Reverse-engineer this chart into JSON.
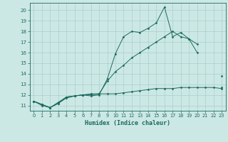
{
  "bg_color": "#cce8e5",
  "line_color": "#1a6b5e",
  "grid_color": "#aacfcc",
  "xlabel": "Humidex (Indice chaleur)",
  "xlim": [
    -0.5,
    23.5
  ],
  "ylim": [
    10.5,
    20.7
  ],
  "yticks": [
    11,
    12,
    13,
    14,
    15,
    16,
    17,
    18,
    19,
    20
  ],
  "xticks": [
    0,
    1,
    2,
    3,
    4,
    5,
    6,
    7,
    8,
    9,
    10,
    11,
    12,
    13,
    14,
    15,
    16,
    17,
    18,
    19,
    20,
    21,
    22,
    23
  ],
  "lines": [
    {
      "x": [
        0,
        1,
        2,
        3,
        4,
        5,
        6,
        7,
        8,
        9,
        10,
        11,
        12,
        13,
        14,
        15,
        16,
        17,
        18,
        19,
        20,
        21,
        22,
        23
      ],
      "y": [
        11.4,
        11.1,
        10.8,
        11.2,
        11.8,
        11.9,
        12.0,
        11.9,
        12.0,
        13.5,
        15.9,
        17.5,
        18.0,
        17.9,
        18.3,
        18.8,
        20.3,
        17.5,
        17.9,
        17.3,
        16.0,
        null,
        null,
        13.8
      ]
    },
    {
      "x": [
        0,
        1,
        2,
        3,
        4,
        5,
        6,
        7,
        8,
        9,
        10,
        11,
        12,
        13,
        14,
        15,
        16,
        17,
        18,
        19,
        20,
        21,
        22,
        23
      ],
      "y": [
        11.4,
        11.1,
        10.8,
        11.3,
        11.8,
        11.9,
        12.0,
        12.0,
        12.1,
        13.3,
        14.2,
        14.8,
        15.5,
        16.0,
        16.5,
        17.0,
        17.5,
        18.0,
        17.5,
        17.3,
        16.8,
        null,
        null,
        12.7
      ]
    },
    {
      "x": [
        0,
        1,
        2,
        3,
        4,
        5,
        6,
        7,
        8,
        9,
        10,
        11,
        12,
        13,
        14,
        15,
        16,
        17,
        18,
        19,
        20,
        21,
        22,
        23
      ],
      "y": [
        11.4,
        11.0,
        10.8,
        11.2,
        11.7,
        11.9,
        12.0,
        12.1,
        12.1,
        12.1,
        12.1,
        12.2,
        12.3,
        12.4,
        12.5,
        12.6,
        12.6,
        12.6,
        12.7,
        12.7,
        12.7,
        12.7,
        12.7,
        12.6
      ]
    }
  ]
}
